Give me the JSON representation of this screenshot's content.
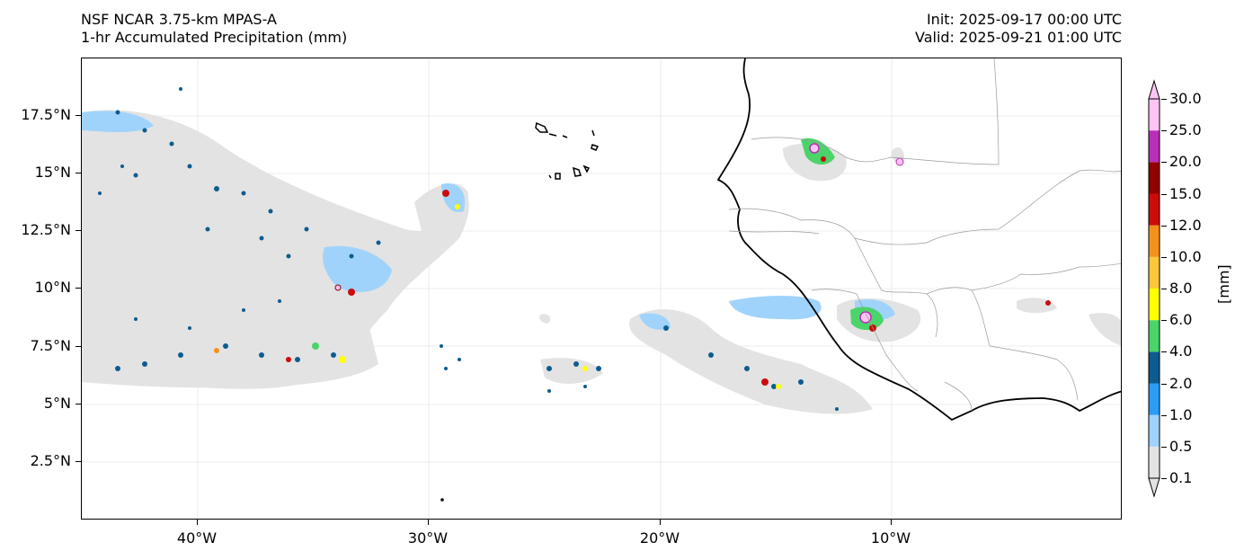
{
  "title": {
    "left_line1": "NSF NCAR 3.75-km MPAS-A",
    "left_line2": "1-hr Accumulated Precipitation (mm)",
    "right_line1": "Init: 2025-09-17 00:00 UTC",
    "right_line2": "Valid: 2025-09-21 01:00 UTC"
  },
  "map": {
    "lat_labels": [
      "17.5°N",
      "15°N",
      "12.5°N",
      "10°N",
      "7.5°N",
      "5°N",
      "2.5°N"
    ],
    "lat_values": [
      17.5,
      15,
      12.5,
      10,
      7.5,
      5,
      2.5
    ],
    "lon_labels": [
      "40°W",
      "30°W",
      "20°W",
      "10°W"
    ],
    "lon_values": [
      -40,
      -30,
      -20,
      -10
    ],
    "extent": {
      "lon_min": -45,
      "lon_max": -0.05,
      "lat_min": 0.2,
      "lat_max": 19.9
    },
    "gridlines": true
  },
  "colorbar": {
    "unit": "[mm]",
    "labels": [
      "0.1",
      "0.5",
      "1.0",
      "2.0",
      "4.0",
      "6.0",
      "8.0",
      "10.0",
      "12.0",
      "15.0",
      "20.0",
      "25.0",
      "30.0"
    ],
    "colors": [
      "#e3e3e3",
      "#9fd3fb",
      "#2b9df4",
      "#0d5c8f",
      "#4ad469",
      "#ffff00",
      "#fbc83c",
      "#f3921a",
      "#cc0c0c",
      "#900000",
      "#b82fb8",
      "#ffc4f5"
    ],
    "extend": "both"
  }
}
